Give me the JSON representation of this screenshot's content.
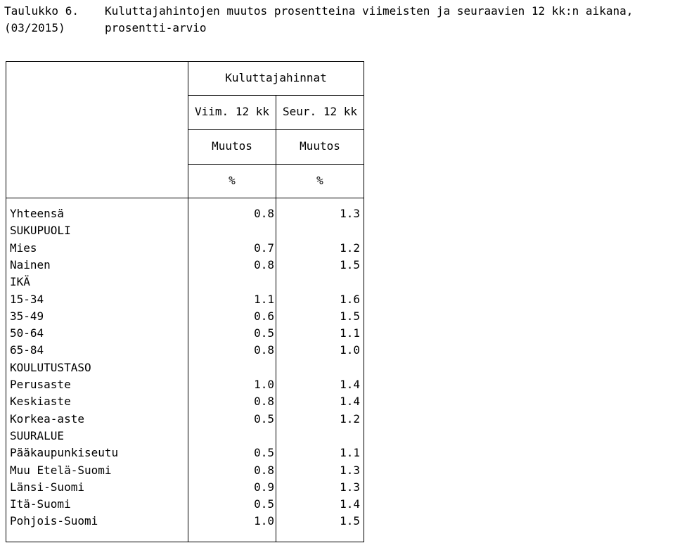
{
  "title": {
    "label": "Taulukko 6.",
    "period": "(03/2015)",
    "line1": "Kuluttajahintojen muutos prosentteina viimeisten ja seuraavien 12 kk:n aikana,",
    "line2": "prosentti-arvio"
  },
  "table": {
    "group_header": "Kuluttajahinnat",
    "columns": [
      {
        "period": "Viim. 12 kk",
        "measure": "Muutos",
        "unit": "%"
      },
      {
        "period": "Seur. 12 kk",
        "measure": "Muutos",
        "unit": "%"
      }
    ],
    "rows": [
      {
        "label": "Yhteensä",
        "values": [
          "0.8",
          "1.3"
        ]
      },
      {
        "label": "SUKUPUOLI",
        "values": [
          "",
          ""
        ]
      },
      {
        "label": "Mies",
        "values": [
          "0.7",
          "1.2"
        ]
      },
      {
        "label": "Nainen",
        "values": [
          "0.8",
          "1.5"
        ]
      },
      {
        "label": "IKÄ",
        "values": [
          "",
          ""
        ]
      },
      {
        "label": "15-34",
        "values": [
          "1.1",
          "1.6"
        ]
      },
      {
        "label": "35-49",
        "values": [
          "0.6",
          "1.5"
        ]
      },
      {
        "label": "50-64",
        "values": [
          "0.5",
          "1.1"
        ]
      },
      {
        "label": "65-84",
        "values": [
          "0.8",
          "1.0"
        ]
      },
      {
        "label": "KOULUTUSTASO",
        "values": [
          "",
          ""
        ]
      },
      {
        "label": "Perusaste",
        "values": [
          "1.0",
          "1.4"
        ]
      },
      {
        "label": "Keskiaste",
        "values": [
          "0.8",
          "1.4"
        ]
      },
      {
        "label": "Korkea-aste",
        "values": [
          "0.5",
          "1.2"
        ]
      },
      {
        "label": "SUURALUE",
        "values": [
          "",
          ""
        ]
      },
      {
        "label": "Pääkaupunkiseutu",
        "values": [
          "0.5",
          "1.1"
        ]
      },
      {
        "label": "Muu Etelä-Suomi",
        "values": [
          "0.8",
          "1.3"
        ]
      },
      {
        "label": "Länsi-Suomi",
        "values": [
          "0.9",
          "1.3"
        ]
      },
      {
        "label": "Itä-Suomi",
        "values": [
          "0.5",
          "1.4"
        ]
      },
      {
        "label": "Pohjois-Suomi",
        "values": [
          "1.0",
          "1.5"
        ]
      }
    ]
  }
}
